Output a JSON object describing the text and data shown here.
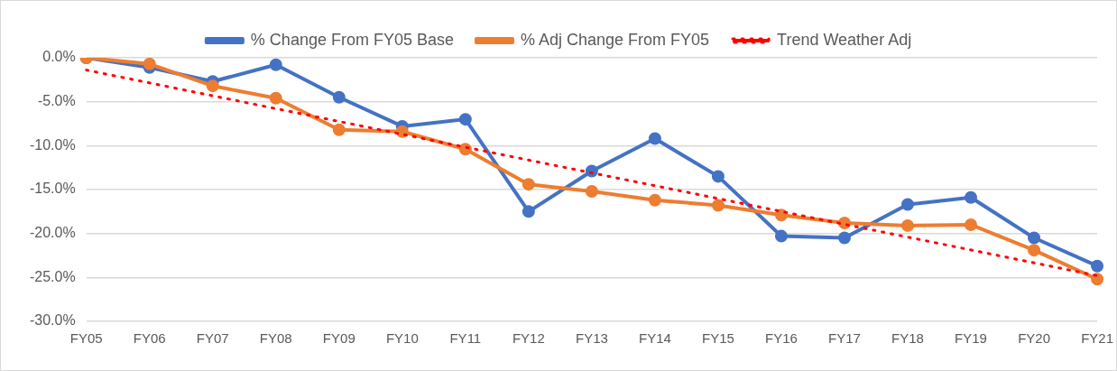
{
  "chart_data": {
    "type": "line",
    "categories": [
      "FY05",
      "FY06",
      "FY07",
      "FY08",
      "FY09",
      "FY10",
      "FY11",
      "FY12",
      "FY13",
      "FY14",
      "FY15",
      "FY16",
      "FY17",
      "FY18",
      "FY19",
      "FY20",
      "FY21"
    ],
    "series": [
      {
        "name": "% Change From FY05 Base",
        "color": "#4472c4",
        "marker": "circle",
        "line_style": "solid",
        "values": [
          0,
          -1.1,
          -2.7,
          -0.8,
          -4.5,
          -7.8,
          -7.0,
          -17.5,
          -12.9,
          -9.2,
          -13.5,
          -20.3,
          -20.5,
          -16.7,
          -15.9,
          -20.5,
          -23.7
        ]
      },
      {
        "name": "% Adj Change From FY05",
        "color": "#ed7d31",
        "marker": "circle",
        "line_style": "solid",
        "values": [
          0,
          -0.7,
          -3.2,
          -4.6,
          -8.2,
          -8.4,
          -10.4,
          -14.4,
          -15.2,
          -16.2,
          -16.8,
          -17.9,
          -18.8,
          -19.1,
          -19.0,
          -21.9,
          -25.2
        ]
      },
      {
        "name": "Trend Weather Adj",
        "color": "#ff0000",
        "type": "line",
        "marker": "none",
        "line_style": "dotted",
        "x": [
          "FY05",
          "FY21"
        ],
        "values": [
          -1.4,
          -24.8
        ]
      }
    ],
    "ylim": [
      -30,
      0
    ],
    "yticks": [
      {
        "value": -30,
        "label": "-30.0%"
      },
      {
        "value": -25,
        "label": "-25.0%"
      },
      {
        "value": -20,
        "label": "-20.0%"
      },
      {
        "value": -15,
        "label": "-15.0%"
      },
      {
        "value": -10,
        "label": "-10.0%"
      },
      {
        "value": -5,
        "label": "-5.0%"
      },
      {
        "value": 0,
        "label": "0.0%"
      }
    ],
    "grid": "y",
    "legend": "top"
  }
}
